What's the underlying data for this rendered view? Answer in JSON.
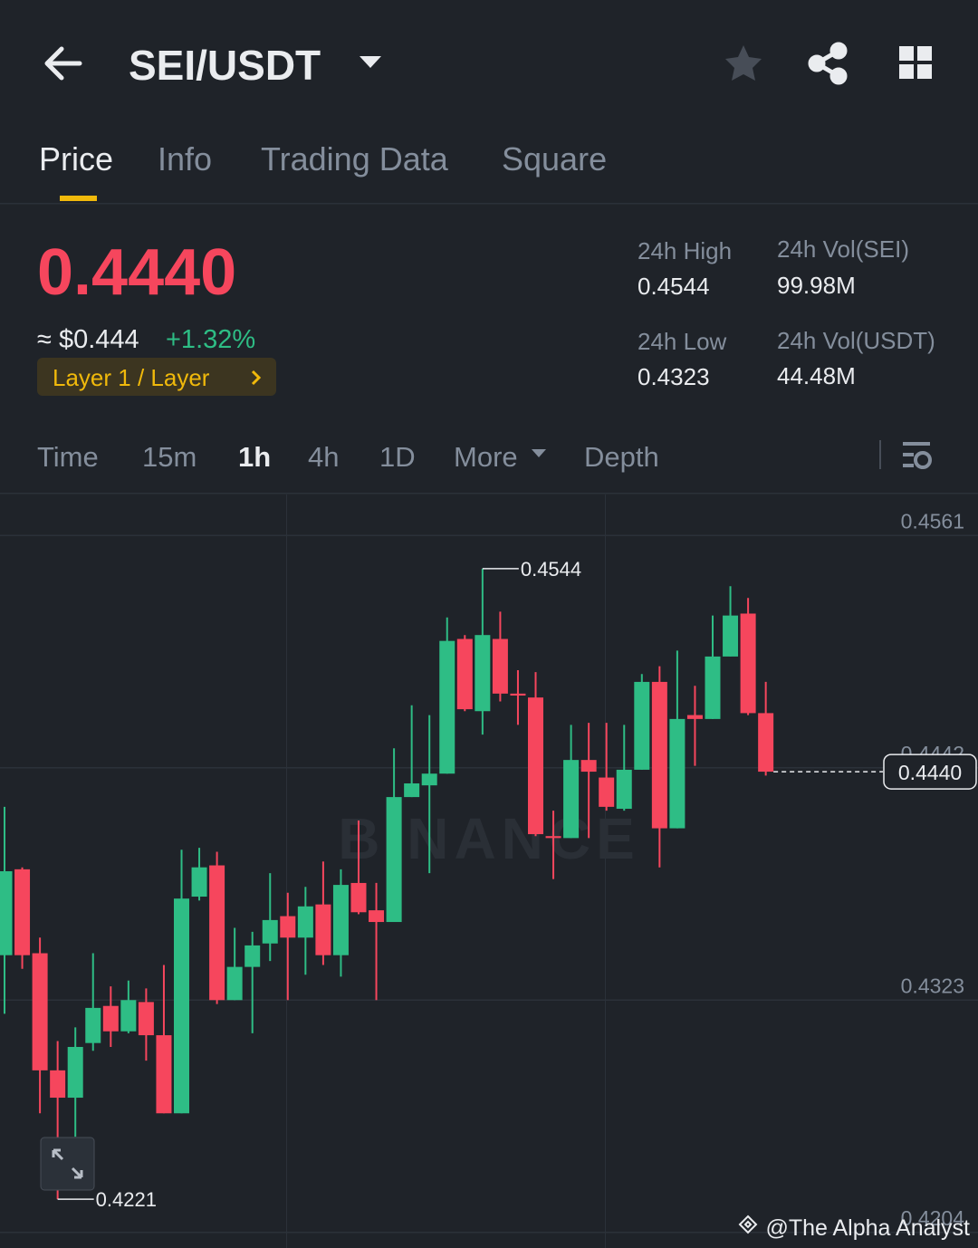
{
  "header": {
    "pair": "SEI/USDT"
  },
  "tabs": [
    "Price",
    "Info",
    "Trading Data",
    "Square"
  ],
  "ticker": {
    "price": "0.4440",
    "usd_price": "≈ $0.444",
    "change": "+1.32%",
    "tag": "Layer 1 / Layer"
  },
  "stats": [
    {
      "label": "24h High",
      "value": "0.4544"
    },
    {
      "label": "24h Vol(SEI)",
      "value": "99.98M"
    },
    {
      "label": "24h Low",
      "value": "0.4323"
    },
    {
      "label": "24h Vol(USDT)",
      "value": "44.48M"
    }
  ],
  "intervals": [
    "Time",
    "15m",
    "1h",
    "4h",
    "1D",
    "More",
    "Depth"
  ],
  "chart_data": {
    "type": "candlestick",
    "up_color": "#2ebd85",
    "down_color": "#f6465d",
    "open": [
      0.4346,
      0.439,
      0.4347,
      0.4287,
      0.4273,
      0.4301,
      0.432,
      0.4307,
      0.4322,
      0.4305,
      0.4265,
      0.4376,
      0.4392,
      0.4323,
      0.434,
      0.4352,
      0.4366,
      0.4355,
      0.4372,
      0.4346,
      0.4383,
      0.4369,
      0.4363,
      0.4427,
      0.4433,
      0.4439,
      0.4508,
      0.4471,
      0.4508,
      0.448,
      0.4478,
      0.4407,
      0.4406,
      0.4446,
      0.4437,
      0.4421,
      0.4441,
      0.4486,
      0.4411,
      0.4469,
      0.4467,
      0.4499,
      0.4521,
      0.447
    ],
    "high": [
      0.4422,
      0.4391,
      0.4355,
      0.4302,
      0.4309,
      0.4347,
      0.433,
      0.4333,
      0.4329,
      0.4341,
      0.44,
      0.4401,
      0.4399,
      0.436,
      0.4358,
      0.4388,
      0.4378,
      0.4381,
      0.4394,
      0.439,
      0.4415,
      0.4383,
      0.4452,
      0.4474,
      0.4469,
      0.4519,
      0.451,
      0.4544,
      0.4522,
      0.4492,
      0.4491,
      0.442,
      0.4464,
      0.4465,
      0.4465,
      0.4464,
      0.449,
      0.4494,
      0.4502,
      0.4484,
      0.452,
      0.4535,
      0.4529,
      0.4486
    ],
    "low": [
      0.4316,
      0.4339,
      0.4265,
      0.4221,
      0.4253,
      0.4297,
      0.4299,
      0.4306,
      0.4292,
      0.4265,
      0.4265,
      0.4374,
      0.4321,
      0.4323,
      0.4306,
      0.4343,
      0.4323,
      0.4336,
      0.4341,
      0.4335,
      0.4367,
      0.4323,
      0.4363,
      0.4427,
      0.4388,
      0.4439,
      0.4471,
      0.4459,
      0.4476,
      0.4464,
      0.4407,
      0.4385,
      0.4406,
      0.4406,
      0.442,
      0.442,
      0.4441,
      0.4391,
      0.4411,
      0.4443,
      0.4467,
      0.4499,
      0.4469,
      0.4438
    ],
    "close": [
      0.4389,
      0.4346,
      0.4287,
      0.4273,
      0.4299,
      0.4319,
      0.4307,
      0.4323,
      0.4305,
      0.4265,
      0.4375,
      0.4391,
      0.4323,
      0.434,
      0.4351,
      0.4364,
      0.4355,
      0.4371,
      0.4346,
      0.4382,
      0.4368,
      0.4363,
      0.4427,
      0.4434,
      0.4439,
      0.4507,
      0.4472,
      0.451,
      0.448,
      0.4479,
      0.4408,
      0.4406,
      0.4446,
      0.444,
      0.4422,
      0.4441,
      0.4486,
      0.4411,
      0.4467,
      0.4467,
      0.4499,
      0.452,
      0.447,
      0.444
    ],
    "ylim": [
      0.4196,
      0.4582
    ],
    "yticks": [
      0.4561,
      0.4442,
      0.4323,
      0.4204
    ],
    "current_price": {
      "value": 0.444,
      "label": "0.4440"
    },
    "watermark": "BINANCE"
  },
  "credit": "@The Alpha Analyst"
}
